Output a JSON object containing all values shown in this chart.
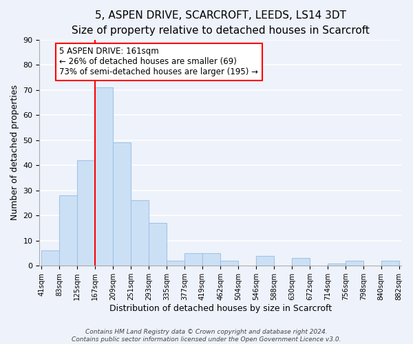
{
  "title": "5, ASPEN DRIVE, SCARCROFT, LEEDS, LS14 3DT",
  "subtitle": "Size of property relative to detached houses in Scarcroft",
  "xlabel": "Distribution of detached houses by size in Scarcroft",
  "ylabel": "Number of detached properties",
  "bar_edges": [
    41,
    83,
    125,
    167,
    209,
    251,
    293,
    335,
    377,
    419,
    462,
    504,
    546,
    588,
    630,
    672,
    714,
    756,
    798,
    840,
    882
  ],
  "bar_heights": [
    6,
    28,
    42,
    71,
    49,
    26,
    17,
    2,
    5,
    5,
    2,
    0,
    4,
    0,
    3,
    0,
    1,
    2,
    0,
    2
  ],
  "bar_color": "#cce0f5",
  "bar_edge_color": "#a0c4e8",
  "vline_x": 167,
  "vline_color": "red",
  "annotation_text": "5 ASPEN DRIVE: 161sqm\n← 26% of detached houses are smaller (69)\n73% of semi-detached houses are larger (195) →",
  "annotation_box_color": "white",
  "annotation_box_edge_color": "red",
  "ylim": [
    0,
    90
  ],
  "yticks": [
    0,
    10,
    20,
    30,
    40,
    50,
    60,
    70,
    80,
    90
  ],
  "tick_labels": [
    "41sqm",
    "83sqm",
    "125sqm",
    "167sqm",
    "209sqm",
    "251sqm",
    "293sqm",
    "335sqm",
    "377sqm",
    "419sqm",
    "462sqm",
    "504sqm",
    "546sqm",
    "588sqm",
    "630sqm",
    "672sqm",
    "714sqm",
    "756sqm",
    "798sqm",
    "840sqm",
    "882sqm"
  ],
  "footer_line1": "Contains HM Land Registry data © Crown copyright and database right 2024.",
  "footer_line2": "Contains public sector information licensed under the Open Government Licence v3.0.",
  "background_color": "#eef2fb",
  "grid_color": "white",
  "title_fontsize": 11,
  "subtitle_fontsize": 9.5,
  "annotation_fontsize": 8.5,
  "footer_fontsize": 6.5
}
